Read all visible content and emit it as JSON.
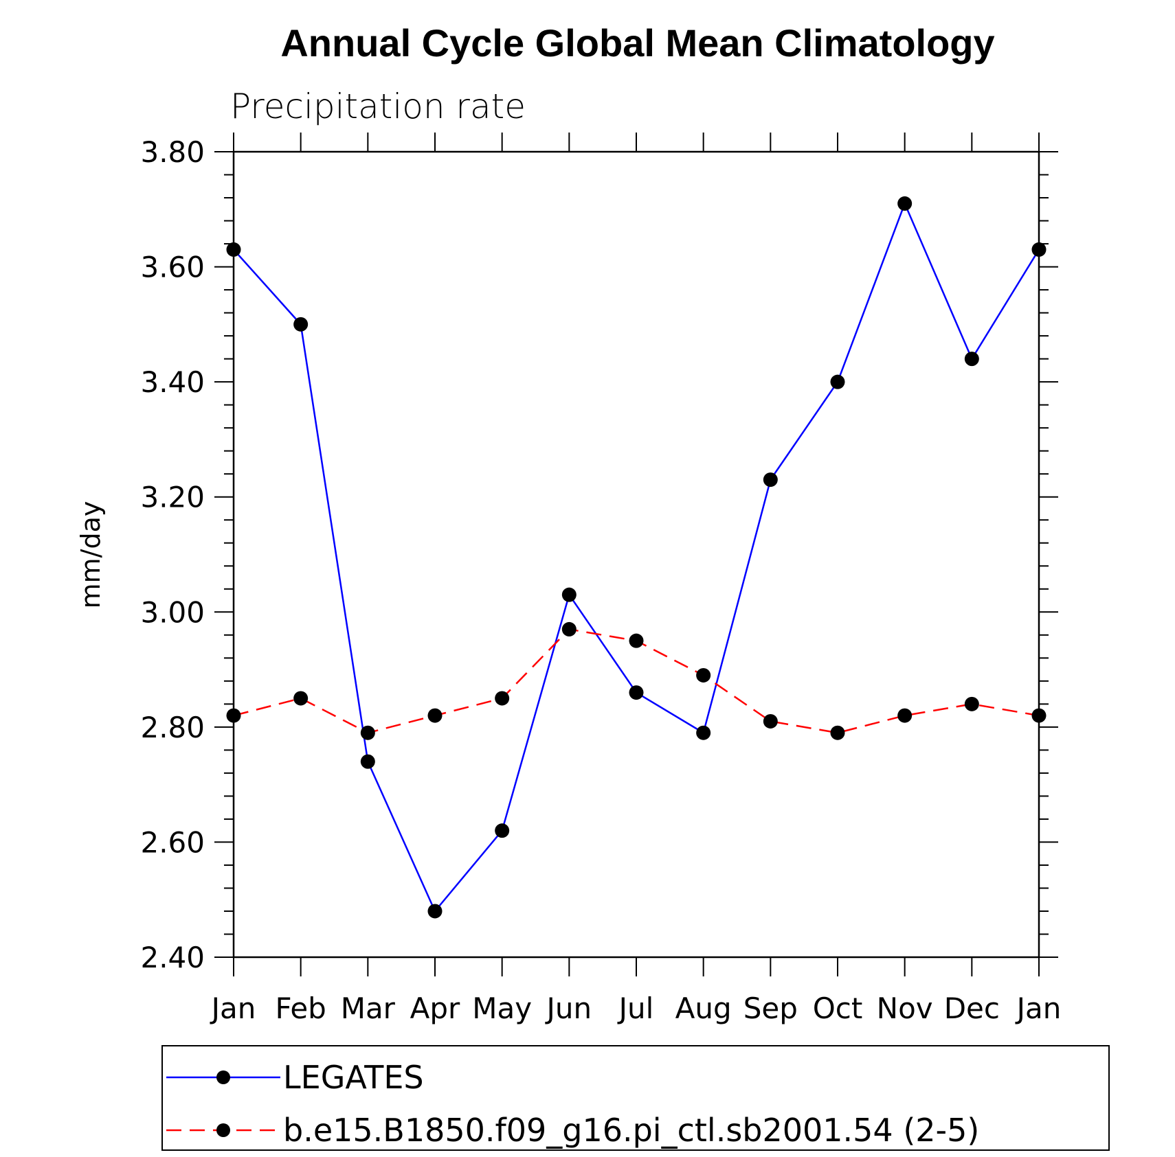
{
  "chart_data": {
    "type": "line",
    "title": "Annual Cycle Global Mean Climatology",
    "subtitle": "Precipitation rate",
    "xlabel": "",
    "ylabel": "mm/day",
    "categories": [
      "Jan",
      "Feb",
      "Mar",
      "Apr",
      "May",
      "Jun",
      "Jul",
      "Aug",
      "Sep",
      "Oct",
      "Nov",
      "Dec",
      "Jan"
    ],
    "ylim": [
      2.4,
      3.8
    ],
    "yticks": [
      "2.40",
      "2.60",
      "2.80",
      "3.00",
      "3.20",
      "3.40",
      "3.60",
      "3.80"
    ],
    "grid": false,
    "legend_position": "bottom",
    "series": [
      {
        "name": "LEGATES",
        "color": "#0000ff",
        "dash": "solid",
        "values": [
          3.63,
          3.5,
          2.74,
          2.48,
          2.62,
          3.03,
          2.86,
          2.79,
          3.23,
          3.4,
          3.71,
          3.44,
          3.63
        ]
      },
      {
        "name": "b.e15.B1850.f09_g16.pi_ctl.sb2001.54 (2-5)",
        "color": "#ff0000",
        "dash": "dashed",
        "values": [
          2.82,
          2.85,
          2.79,
          2.82,
          2.85,
          2.97,
          2.95,
          2.89,
          2.81,
          2.79,
          2.82,
          2.84,
          2.82
        ]
      }
    ]
  }
}
